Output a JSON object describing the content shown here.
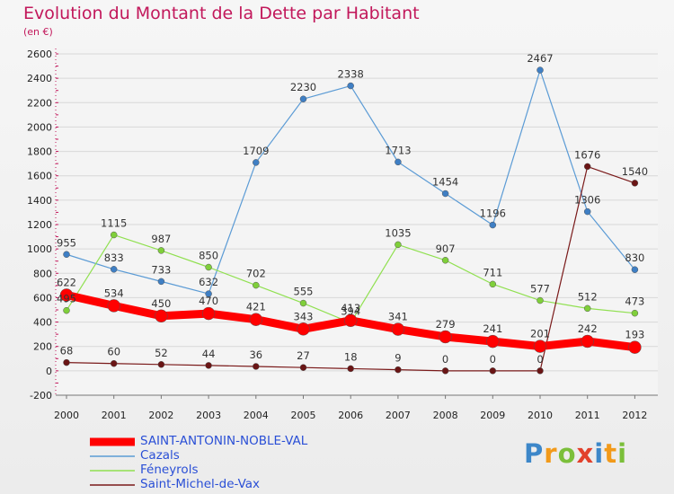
{
  "chart_data": {
    "type": "line",
    "title": "Evolution du Montant de la Dette par Habitant",
    "subtitle": "(en €)",
    "x": [
      "2000",
      "2001",
      "2002",
      "2003",
      "2004",
      "2005",
      "2006",
      "2007",
      "2008",
      "2009",
      "2010",
      "2011",
      "2012"
    ],
    "yticks": [
      -200,
      0,
      200,
      400,
      600,
      800,
      1000,
      1200,
      1400,
      1600,
      1800,
      2000,
      2200,
      2400,
      2600
    ],
    "ylim": [
      -200,
      2600
    ],
    "grid": "horizontal",
    "legend_position": "bottom-left",
    "series": [
      {
        "name": "SAINT-ANTONIN-NOBLE-VAL",
        "color": "#ff0000",
        "values": [
          622,
          534,
          450,
          470,
          421,
          343,
          413,
          341,
          279,
          241,
          201,
          242,
          193
        ],
        "labels": [
          "622",
          "534",
          "450",
          "470",
          "421",
          "343",
          "413",
          "341",
          "279",
          "241",
          "201",
          "242",
          "193"
        ]
      },
      {
        "name": "Cazals",
        "color": "#5b9bd5",
        "values": [
          955,
          833,
          733,
          632,
          1709,
          2230,
          2338,
          1713,
          1454,
          1196,
          2467,
          1306,
          830
        ],
        "labels": [
          "955",
          "833",
          "733",
          "632",
          "1709",
          "2230",
          "2338",
          "1713",
          "1454",
          "1196",
          "2467",
          "1306",
          "830"
        ]
      },
      {
        "name": "Féneyrols",
        "color": "#90e050",
        "values": [
          495,
          1115,
          987,
          850,
          702,
          555,
          394,
          1035,
          907,
          711,
          577,
          512,
          473
        ],
        "labels": [
          "495",
          "1115",
          "987",
          "850",
          "702",
          "555",
          "394",
          "1035",
          "907",
          "711",
          "577",
          "512",
          "473"
        ]
      },
      {
        "name": "Saint-Michel-de-Vax",
        "color": "#7a1a1a",
        "values": [
          68,
          60,
          52,
          44,
          36,
          27,
          18,
          9,
          0,
          0,
          0,
          1676,
          1540
        ],
        "labels": [
          "68",
          "60",
          "52",
          "44",
          "36",
          "27",
          "18",
          "9",
          "0",
          "0",
          "0",
          "1676",
          "1540"
        ]
      }
    ]
  },
  "logo": {
    "letters": [
      "P",
      "r",
      "o",
      "x",
      "i",
      "t",
      "i"
    ]
  }
}
